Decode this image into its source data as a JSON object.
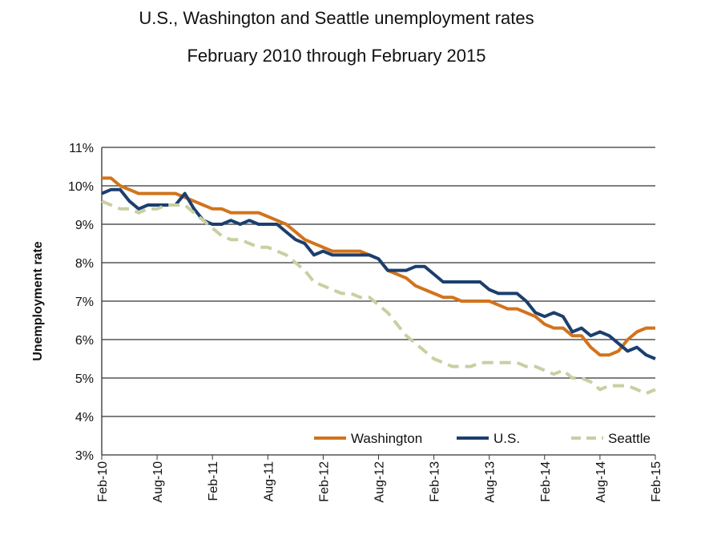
{
  "chart_data": {
    "type": "line",
    "title": "U.S., Washington and Seattle unemployment rates",
    "subtitle": "February 2010 through February 2015",
    "xlabel": "",
    "ylabel": "Unemployment rate",
    "ylim": [
      3,
      11
    ],
    "yticks": [
      "3%",
      "4%",
      "5%",
      "6%",
      "7%",
      "8%",
      "9%",
      "10%",
      "11%"
    ],
    "xticks": [
      "Feb-10",
      "Aug-10",
      "Feb-11",
      "Aug-11",
      "Feb-12",
      "Aug-12",
      "Feb-13",
      "Aug-13",
      "Feb-14",
      "Aug-14",
      "Feb-15"
    ],
    "x_unit": "monthly, Feb-10 to Feb-15",
    "grid": "horizontal",
    "legend": "bottom-right",
    "series": [
      {
        "name": "Washington",
        "color": "#D2731C",
        "style": "solid",
        "values": [
          10.2,
          10.2,
          10.0,
          9.9,
          9.8,
          9.8,
          9.8,
          9.8,
          9.8,
          9.7,
          9.6,
          9.5,
          9.4,
          9.4,
          9.3,
          9.3,
          9.3,
          9.3,
          9.2,
          9.1,
          9.0,
          8.8,
          8.6,
          8.5,
          8.4,
          8.3,
          8.3,
          8.3,
          8.3,
          8.2,
          8.1,
          7.8,
          7.7,
          7.6,
          7.4,
          7.3,
          7.2,
          7.1,
          7.1,
          7.0,
          7.0,
          7.0,
          7.0,
          6.9,
          6.8,
          6.8,
          6.7,
          6.6,
          6.4,
          6.3,
          6.3,
          6.1,
          6.1,
          5.8,
          5.6,
          5.6,
          5.7,
          6.0,
          6.2,
          6.3,
          6.3
        ]
      },
      {
        "name": "U.S.",
        "color": "#1B3F6E",
        "style": "solid",
        "values": [
          9.8,
          9.9,
          9.9,
          9.6,
          9.4,
          9.5,
          9.5,
          9.5,
          9.5,
          9.8,
          9.4,
          9.1,
          9.0,
          9.0,
          9.1,
          9.0,
          9.1,
          9.0,
          9.0,
          9.0,
          8.8,
          8.6,
          8.5,
          8.2,
          8.3,
          8.2,
          8.2,
          8.2,
          8.2,
          8.2,
          8.1,
          7.8,
          7.8,
          7.8,
          7.9,
          7.9,
          7.7,
          7.5,
          7.5,
          7.5,
          7.5,
          7.5,
          7.3,
          7.2,
          7.2,
          7.2,
          7.0,
          6.7,
          6.6,
          6.7,
          6.6,
          6.2,
          6.3,
          6.1,
          6.2,
          6.1,
          5.9,
          5.7,
          5.8,
          5.6,
          5.5
        ]
      },
      {
        "name": "Seattle",
        "color": "#C9CFA1",
        "style": "dashed",
        "values": [
          9.6,
          9.5,
          9.4,
          9.4,
          9.3,
          9.4,
          9.4,
          9.5,
          9.5,
          9.5,
          9.3,
          9.1,
          8.9,
          8.7,
          8.6,
          8.6,
          8.5,
          8.4,
          8.4,
          8.3,
          8.2,
          8.0,
          7.8,
          7.5,
          7.4,
          7.3,
          7.2,
          7.2,
          7.1,
          7.1,
          6.9,
          6.7,
          6.4,
          6.1,
          5.9,
          5.7,
          5.5,
          5.4,
          5.3,
          5.3,
          5.3,
          5.4,
          5.4,
          5.4,
          5.4,
          5.4,
          5.3,
          5.3,
          5.2,
          5.1,
          5.2,
          5.0,
          5.0,
          4.9,
          4.7,
          4.8,
          4.8,
          4.8,
          4.7,
          4.6,
          4.7
        ]
      }
    ]
  }
}
